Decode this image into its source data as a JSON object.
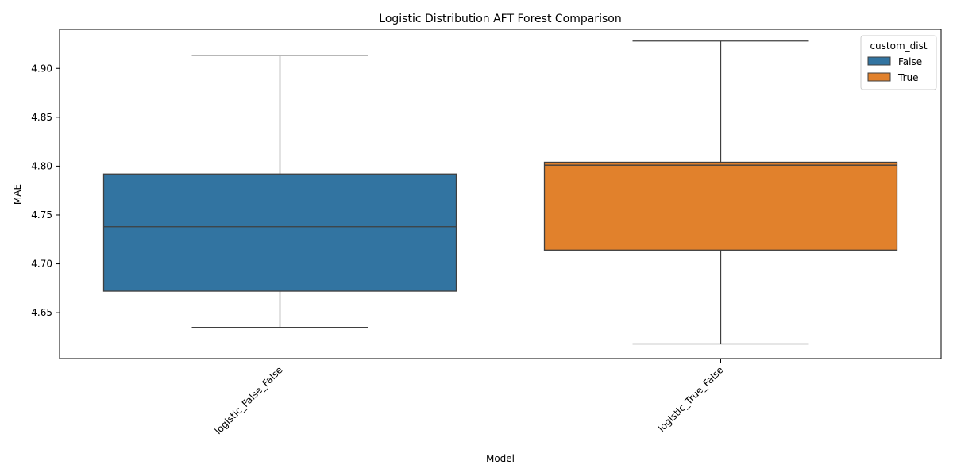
{
  "chart_data": {
    "type": "box",
    "title": "Logistic Distribution AFT Forest Comparison",
    "xlabel": "Model",
    "ylabel": "MAE",
    "categories": [
      "logistic_False_False",
      "logistic_True_False"
    ],
    "ylim": [
      4.603,
      4.94
    ],
    "yticks": [
      4.65,
      4.7,
      4.75,
      4.8,
      4.85,
      4.9
    ],
    "ytick_labels": [
      "4.65",
      "4.70",
      "4.75",
      "4.80",
      "4.85",
      "4.90"
    ],
    "x_tick_rotation_deg": 45,
    "grid": false,
    "legend": {
      "title": "custom_dist",
      "position": "top-right",
      "entries": [
        {
          "label": "False",
          "color": "#3274a1"
        },
        {
          "label": "True",
          "color": "#e1812c"
        }
      ]
    },
    "series": [
      {
        "name": "False",
        "category": "logistic_False_False",
        "color": "#3274a1",
        "whisker_low": 4.635,
        "q1": 4.672,
        "median": 4.738,
        "q3": 4.792,
        "whisker_high": 4.913
      },
      {
        "name": "True",
        "category": "logistic_True_False",
        "color": "#e1812c",
        "whisker_low": 4.618,
        "q1": 4.714,
        "median": 4.801,
        "q3": 4.804,
        "whisker_high": 4.928
      }
    ]
  }
}
